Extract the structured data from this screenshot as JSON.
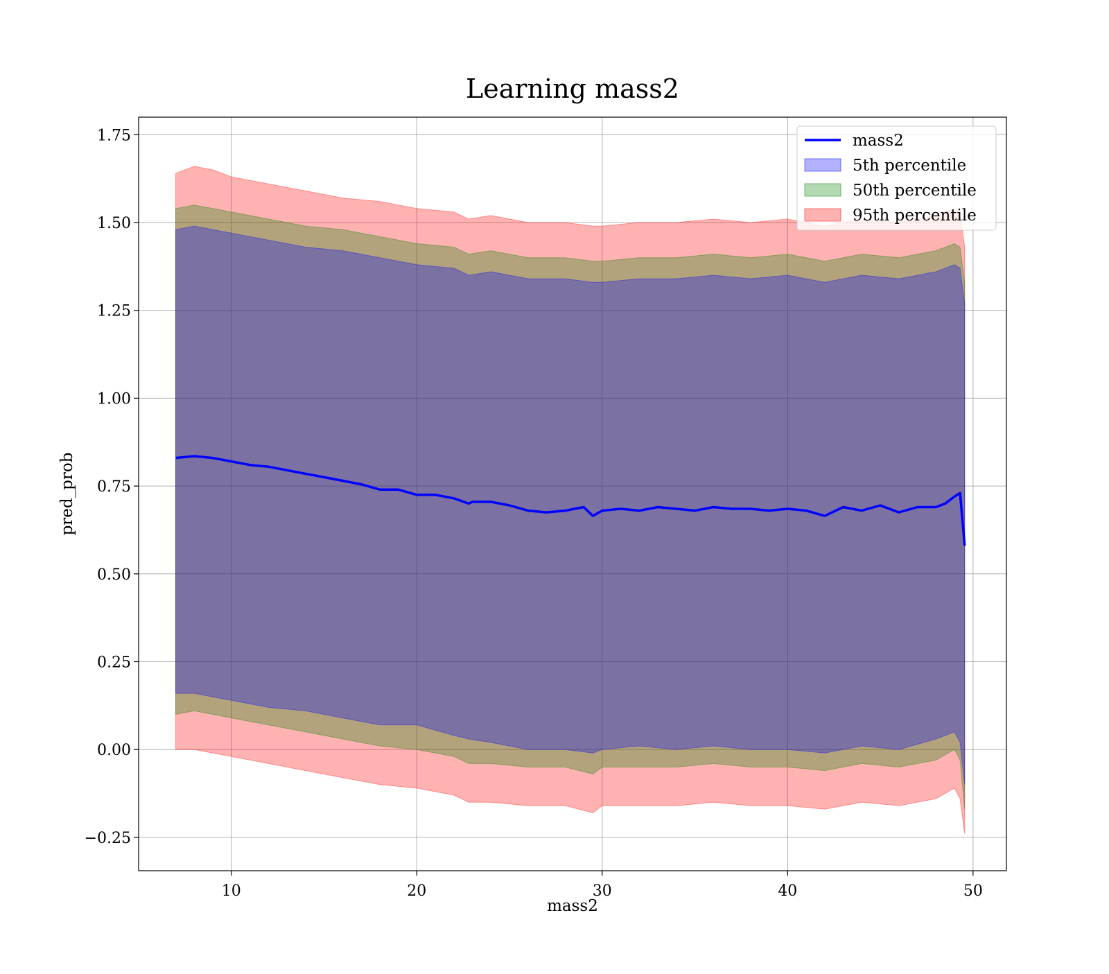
{
  "chart_data": {
    "type": "area",
    "title": "Learning mass2",
    "xlabel": "mass2",
    "ylabel": "pred_prob",
    "xlim": [
      5,
      51.8
    ],
    "ylim": [
      -0.345,
      1.8
    ],
    "xticks": [
      10,
      20,
      30,
      40,
      50
    ],
    "xtick_labels": [
      "10",
      "20",
      "30",
      "40",
      "50"
    ],
    "yticks": [
      -0.25,
      0.0,
      0.25,
      0.5,
      0.75,
      1.0,
      1.25,
      1.5,
      1.75
    ],
    "ytick_labels": [
      "−0.25",
      "0.00",
      "0.25",
      "0.50",
      "0.75",
      "1.00",
      "1.25",
      "1.50",
      "1.75"
    ],
    "grid": true,
    "legend_position": "top-right",
    "legend": [
      "mass2",
      "5th percentile",
      "50th percentile",
      "95th percentile"
    ],
    "colors": {
      "line": "#0000ff",
      "band_5": "#0000ff",
      "band_50": "#008000",
      "band_95": "#ff0000"
    },
    "series": [
      {
        "name": "mass2",
        "kind": "line",
        "x": [
          7.0,
          8.0,
          9.0,
          10.0,
          11.0,
          12.0,
          13.0,
          14.0,
          15.0,
          16.0,
          17.0,
          18.0,
          19.0,
          20.0,
          21.0,
          22.0,
          22.8,
          23.0,
          24.0,
          25.0,
          26.0,
          27.0,
          28.0,
          29.0,
          29.5,
          30.0,
          31.0,
          32.0,
          33.0,
          34.0,
          35.0,
          36.0,
          37.0,
          38.0,
          39.0,
          40.0,
          41.0,
          42.0,
          43.0,
          44.0,
          45.0,
          46.0,
          47.0,
          48.0,
          48.5,
          49.0,
          49.3,
          49.55
        ],
        "y": [
          0.83,
          0.835,
          0.83,
          0.82,
          0.81,
          0.805,
          0.795,
          0.785,
          0.775,
          0.765,
          0.755,
          0.74,
          0.74,
          0.725,
          0.725,
          0.715,
          0.7,
          0.705,
          0.705,
          0.695,
          0.68,
          0.675,
          0.68,
          0.69,
          0.665,
          0.68,
          0.685,
          0.68,
          0.69,
          0.685,
          0.68,
          0.69,
          0.685,
          0.685,
          0.68,
          0.685,
          0.68,
          0.665,
          0.69,
          0.68,
          0.695,
          0.675,
          0.69,
          0.69,
          0.7,
          0.72,
          0.73,
          0.58
        ]
      },
      {
        "name": "5th percentile",
        "kind": "band",
        "x": [
          7.0,
          8.0,
          9.0,
          10.0,
          12.0,
          14.0,
          16.0,
          18.0,
          20.0,
          22.0,
          22.8,
          24.0,
          26.0,
          28.0,
          29.5,
          30.0,
          32.0,
          34.0,
          36.0,
          38.0,
          40.0,
          42.0,
          44.0,
          46.0,
          48.0,
          49.0,
          49.3,
          49.55
        ],
        "lower": [
          0.16,
          0.16,
          0.15,
          0.14,
          0.12,
          0.11,
          0.09,
          0.07,
          0.07,
          0.04,
          0.03,
          0.02,
          0.0,
          0.0,
          -0.01,
          0.0,
          0.01,
          0.0,
          0.01,
          0.0,
          0.0,
          -0.01,
          0.01,
          0.0,
          0.03,
          0.05,
          0.02,
          -0.1
        ],
        "upper": [
          1.48,
          1.49,
          1.48,
          1.47,
          1.45,
          1.43,
          1.42,
          1.4,
          1.38,
          1.37,
          1.35,
          1.36,
          1.34,
          1.34,
          1.33,
          1.33,
          1.34,
          1.34,
          1.35,
          1.34,
          1.35,
          1.33,
          1.35,
          1.34,
          1.36,
          1.38,
          1.37,
          1.27
        ]
      },
      {
        "name": "50th percentile",
        "kind": "band",
        "x": [
          7.0,
          8.0,
          9.0,
          10.0,
          12.0,
          14.0,
          16.0,
          18.0,
          20.0,
          22.0,
          22.8,
          24.0,
          26.0,
          28.0,
          29.5,
          30.0,
          32.0,
          34.0,
          36.0,
          38.0,
          40.0,
          42.0,
          44.0,
          46.0,
          48.0,
          49.0,
          49.3,
          49.55
        ],
        "lower": [
          0.1,
          0.11,
          0.1,
          0.09,
          0.07,
          0.05,
          0.03,
          0.01,
          0.0,
          -0.02,
          -0.04,
          -0.04,
          -0.05,
          -0.05,
          -0.07,
          -0.05,
          -0.05,
          -0.05,
          -0.04,
          -0.05,
          -0.05,
          -0.06,
          -0.04,
          -0.05,
          -0.03,
          0.0,
          -0.03,
          -0.17
        ],
        "upper": [
          1.54,
          1.55,
          1.54,
          1.53,
          1.51,
          1.49,
          1.48,
          1.46,
          1.44,
          1.43,
          1.41,
          1.42,
          1.4,
          1.4,
          1.39,
          1.39,
          1.4,
          1.4,
          1.41,
          1.4,
          1.41,
          1.39,
          1.41,
          1.4,
          1.42,
          1.44,
          1.43,
          1.33
        ]
      },
      {
        "name": "95th percentile",
        "kind": "band",
        "x": [
          7.0,
          8.0,
          9.0,
          10.0,
          12.0,
          14.0,
          16.0,
          18.0,
          20.0,
          22.0,
          22.8,
          24.0,
          26.0,
          28.0,
          29.5,
          30.0,
          32.0,
          34.0,
          36.0,
          38.0,
          40.0,
          42.0,
          44.0,
          46.0,
          48.0,
          49.0,
          49.3,
          49.55
        ],
        "lower": [
          0.0,
          0.0,
          -0.01,
          -0.02,
          -0.04,
          -0.06,
          -0.08,
          -0.1,
          -0.11,
          -0.13,
          -0.15,
          -0.15,
          -0.16,
          -0.16,
          -0.18,
          -0.16,
          -0.16,
          -0.16,
          -0.15,
          -0.16,
          -0.16,
          -0.17,
          -0.15,
          -0.16,
          -0.14,
          -0.11,
          -0.14,
          -0.24
        ],
        "upper": [
          1.64,
          1.66,
          1.65,
          1.63,
          1.61,
          1.59,
          1.57,
          1.56,
          1.54,
          1.53,
          1.51,
          1.52,
          1.5,
          1.5,
          1.49,
          1.49,
          1.5,
          1.5,
          1.51,
          1.5,
          1.51,
          1.49,
          1.51,
          1.5,
          1.52,
          1.54,
          1.53,
          1.43
        ]
      }
    ]
  }
}
